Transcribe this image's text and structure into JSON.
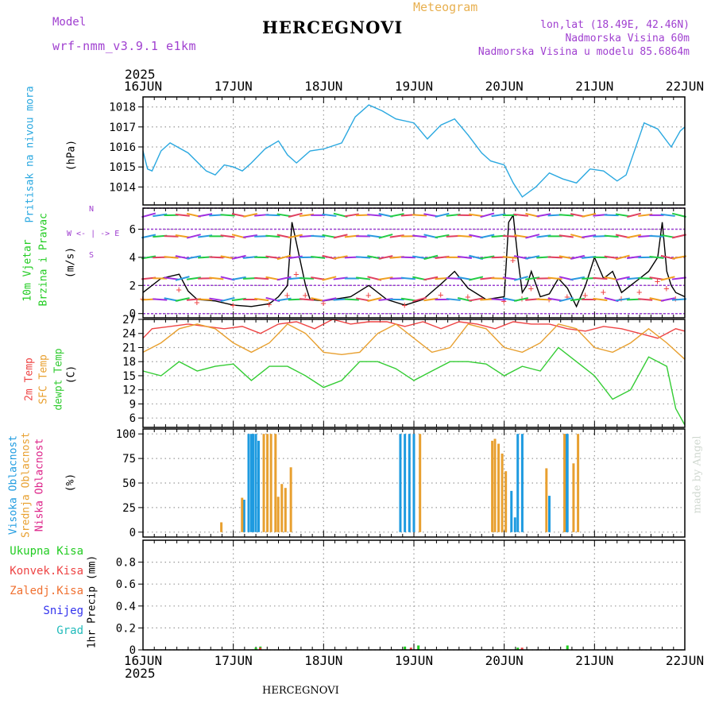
{
  "header": {
    "model_label": "Model",
    "model_name": "wrf-nmm_v3.9.1 e1km",
    "title": "HERCEGNOVI",
    "meteogram_label": "Meteogram",
    "lonlat": "lon,lat (18.49E, 42.46N)",
    "elevation": "Nadmorska Visina 60m",
    "model_elevation": "Nadmorska Visina u modelu 85.6864m",
    "year_top": "2025",
    "year_bottom": "2025",
    "footer_station": "HERCEGNOVI",
    "credit": "made by Angel"
  },
  "colors": {
    "pressure": "#2aa8e0",
    "wind_green": "#22cc22",
    "temp_red": "#ee4444",
    "sfc_orange": "#e8a030",
    "dewpt_green": "#33cc33",
    "high_cloud": "#1e9be0",
    "mid_cloud": "#e8a030",
    "low_cloud": "#dd2288",
    "purple": "#a040d0",
    "snow_blue": "#3333ee",
    "graupel_cyan": "#22bbbb"
  },
  "chart_data": {
    "x_axis": {
      "dates": [
        "16JUN",
        "17JUN",
        "18JUN",
        "19JUN",
        "20JUN",
        "21JUN",
        "22JUN"
      ],
      "range_days": [
        0,
        6
      ]
    },
    "panels": [
      {
        "type": "line",
        "name": "pressure",
        "ylabel_1": "Pritisak na nivou mora",
        "unit": "(hPa)",
        "ylim": [
          1013.1,
          1018.5
        ],
        "yticks": [
          "1014",
          "1015",
          "1016",
          "1017",
          "1018"
        ],
        "ytick_values": [
          1014,
          1015,
          1016,
          1017,
          1018
        ],
        "series": [
          {
            "color_key": "pressure",
            "x": [
              0,
              0.05,
              0.1,
              0.2,
              0.3,
              0.5,
              0.7,
              0.8,
              0.9,
              1.0,
              1.1,
              1.2,
              1.35,
              1.5,
              1.6,
              1.7,
              1.85,
              2.0,
              2.2,
              2.35,
              2.5,
              2.65,
              2.8,
              3.0,
              3.15,
              3.3,
              3.45,
              3.6,
              3.75,
              3.85,
              4.0,
              4.1,
              4.2,
              4.35,
              4.5,
              4.65,
              4.8,
              4.95,
              5.1,
              5.25,
              5.35,
              5.55,
              5.7,
              5.85,
              5.95,
              6.0
            ],
            "y": [
              1015.8,
              1014.9,
              1014.8,
              1015.8,
              1016.2,
              1015.7,
              1014.8,
              1014.6,
              1015.1,
              1015.0,
              1014.8,
              1015.2,
              1015.9,
              1016.3,
              1015.6,
              1015.2,
              1015.8,
              1015.9,
              1016.2,
              1017.5,
              1018.1,
              1017.8,
              1017.4,
              1017.2,
              1016.4,
              1017.1,
              1017.4,
              1016.6,
              1015.7,
              1015.3,
              1015.1,
              1014.2,
              1013.5,
              1014.0,
              1014.7,
              1014.4,
              1014.2,
              1014.9,
              1014.8,
              1014.3,
              1014.6,
              1017.2,
              1016.9,
              1016.0,
              1016.8,
              1017.0
            ]
          }
        ]
      },
      {
        "type": "line",
        "name": "wind",
        "ylabel_1": "10m Vjetar",
        "ylabel_2": "Brzina i Pravac",
        "unit": "(m/s)",
        "compass": "W <- | -> E",
        "ylim": [
          -0.3,
          7.5
        ],
        "yticks": [
          "0",
          "2",
          "4",
          "6"
        ],
        "ytick_values": [
          0,
          2,
          4,
          6
        ],
        "series": [
          {
            "name": "",
            "color": "#000000",
            "x": [
              0,
              0.2,
              0.4,
              0.5,
              0.6,
              0.8,
              1.0,
              1.2,
              1.4,
              1.5,
              1.6,
              1.65,
              1.7,
              1.75,
              1.8,
              1.85,
              2.0,
              2.3,
              2.5,
              2.7,
              2.9,
              3.1,
              3.3,
              3.45,
              3.6,
              3.8,
              4.0,
              4.05,
              4.1,
              4.15,
              4.2,
              4.25,
              4.3,
              4.4,
              4.5,
              4.6,
              4.7,
              4.8,
              4.9,
              5.0,
              5.1,
              5.2,
              5.3,
              5.4,
              5.5,
              5.6,
              5.7,
              5.75,
              5.8,
              5.85,
              5.9,
              6.0
            ],
            "y": [
              1.5,
              2.5,
              2.8,
              1.6,
              1.0,
              0.9,
              0.6,
              0.5,
              0.7,
              1.2,
              2.0,
              6.5,
              5.0,
              3.5,
              2.0,
              1.0,
              0.9,
              1.2,
              2.0,
              1.0,
              0.6,
              1.0,
              2.1,
              3.0,
              1.8,
              1.0,
              1.2,
              6.5,
              7.0,
              4.0,
              1.5,
              2.0,
              3.0,
              1.2,
              1.4,
              2.5,
              1.8,
              0.5,
              2.0,
              4.0,
              2.5,
              3.0,
              1.5,
              2.0,
              2.5,
              3.0,
              4.0,
              6.5,
              3.0,
              2.0,
              1.5,
              1.2
            ]
          }
        ]
      },
      {
        "type": "line",
        "name": "temperature",
        "ylabel_1": "2m Temp",
        "ylabel_2": "SFC Temp",
        "ylabel_3": "dewpt Temp",
        "unit": "(C)",
        "ylim": [
          4,
          27
        ],
        "yticks": [
          "6",
          "9",
          "12",
          "15",
          "18",
          "21",
          "24",
          "27"
        ],
        "ytick_values": [
          6,
          9,
          12,
          15,
          18,
          21,
          24,
          27
        ],
        "series": [
          {
            "color_key": "temp_red",
            "x": [
              0,
              0.1,
              0.3,
              0.5,
              0.7,
              0.9,
              1.1,
              1.3,
              1.5,
              1.7,
              1.9,
              2.1,
              2.3,
              2.5,
              2.7,
              2.9,
              3.1,
              3.3,
              3.5,
              3.7,
              3.9,
              4.1,
              4.3,
              4.5,
              4.7,
              4.9,
              5.1,
              5.3,
              5.5,
              5.7,
              5.9,
              6.0
            ],
            "y": [
              23,
              25,
              25.5,
              26,
              25.5,
              25,
              25.5,
              24,
              26,
              26.5,
              25,
              27,
              26,
              26.5,
              26.5,
              25.5,
              26.5,
              25,
              26.5,
              26,
              25,
              26.5,
              26,
              26,
              25,
              24.5,
              25.5,
              25,
              24,
              23,
              25,
              24.5
            ]
          },
          {
            "color_key": "sfc_orange",
            "x": [
              0,
              0.2,
              0.4,
              0.6,
              0.8,
              1.0,
              1.2,
              1.4,
              1.6,
              1.8,
              2.0,
              2.2,
              2.4,
              2.6,
              2.8,
              3.0,
              3.2,
              3.4,
              3.6,
              3.8,
              4.0,
              4.2,
              4.4,
              4.6,
              4.8,
              5.0,
              5.2,
              5.4,
              5.6,
              5.8,
              6.0
            ],
            "y": [
              20,
              22,
              25,
              26,
              25,
              22,
              20,
              22,
              26,
              24,
              20,
              19.5,
              20,
              24,
              26,
              23,
              20,
              21,
              26,
              25,
              21,
              20,
              22,
              26,
              25,
              21,
              20,
              22,
              25,
              22,
              18.5
            ]
          },
          {
            "color_key": "dewpt_green",
            "x": [
              0,
              0.2,
              0.4,
              0.6,
              0.8,
              1.0,
              1.2,
              1.4,
              1.6,
              1.8,
              2.0,
              2.2,
              2.4,
              2.6,
              2.8,
              3.0,
              3.2,
              3.4,
              3.6,
              3.8,
              4.0,
              4.2,
              4.4,
              4.6,
              4.8,
              5.0,
              5.2,
              5.4,
              5.6,
              5.8,
              5.9,
              6.0
            ],
            "y": [
              16,
              15,
              18,
              16,
              17,
              17.5,
              14,
              17,
              17,
              15,
              12.5,
              14,
              18,
              18,
              16.5,
              14,
              16,
              18,
              18,
              17.5,
              15,
              17,
              16,
              21,
              18,
              15,
              10,
              12,
              19,
              17,
              8,
              4.5
            ]
          }
        ]
      },
      {
        "type": "bar",
        "name": "cloud",
        "ylabel_1": "Visoka Oblacnost",
        "ylabel_2": "Srednja Oblacnost",
        "ylabel_3": "Niska Oblacnost",
        "unit": "(%)",
        "ylim": [
          -5,
          105
        ],
        "yticks": [
          "0",
          "25",
          "50",
          "75",
          "100"
        ],
        "ytick_values": [
          0,
          25,
          50,
          75,
          100
        ],
        "series": [
          {
            "color_key": "high_cloud",
            "x": [
              1.12,
              1.17,
              1.2,
              1.22,
              1.25,
              1.28,
              2.85,
              2.9,
              2.95,
              3.0,
              4.08,
              4.12,
              4.15,
              4.2,
              4.5,
              4.68,
              4.7
            ],
            "y": [
              33,
              100,
              100,
              100,
              100,
              93,
              100,
              100,
              100,
              100,
              42,
              15,
              100,
              100,
              37,
              100,
              100
            ]
          },
          {
            "color_key": "mid_cloud",
            "x": [
              0.85,
              1.08,
              1.32,
              1.36,
              1.4,
              1.45,
              1.48,
              1.52,
              1.56,
              1.62,
              3.05,
              3.85,
              3.88,
              3.92,
              3.96,
              4.0,
              4.45,
              4.65,
              4.75,
              4.8
            ],
            "y": [
              10,
              35,
              100,
              100,
              100,
              100,
              36,
              49,
              45,
              66,
              100,
              93,
              95,
              90,
              80,
              62,
              65,
              100,
              70,
              100
            ]
          }
        ]
      },
      {
        "type": "bar",
        "name": "precip",
        "ylabel_1": "Ukupna Kisa",
        "ylabel_2": "Konvek.Kisa",
        "ylabel_3": "Zaledj.Kisa",
        "ylabel_4": "Snijeg",
        "ylabel_5": "Grad",
        "unit": "1hr Precip (mm)",
        "ylim": [
          0,
          1.0
        ],
        "yticks": [
          "0",
          "0.2",
          "0.4",
          "0.6",
          "0.8"
        ],
        "ytick_values": [
          0,
          0.2,
          0.4,
          0.6,
          0.8
        ],
        "series": [
          {
            "color_key": "wind_green",
            "x": [
              1.25,
              1.3,
              2.9,
              3.05,
              4.15,
              4.7
            ],
            "y": [
              0.02,
              0.03,
              0.03,
              0.04,
              0.02,
              0.04
            ]
          },
          {
            "color_key": "temp_red",
            "x": [
              1.28,
              2.95,
              4.18
            ],
            "y": [
              0.02,
              0.02,
              0.02
            ]
          }
        ]
      }
    ]
  }
}
